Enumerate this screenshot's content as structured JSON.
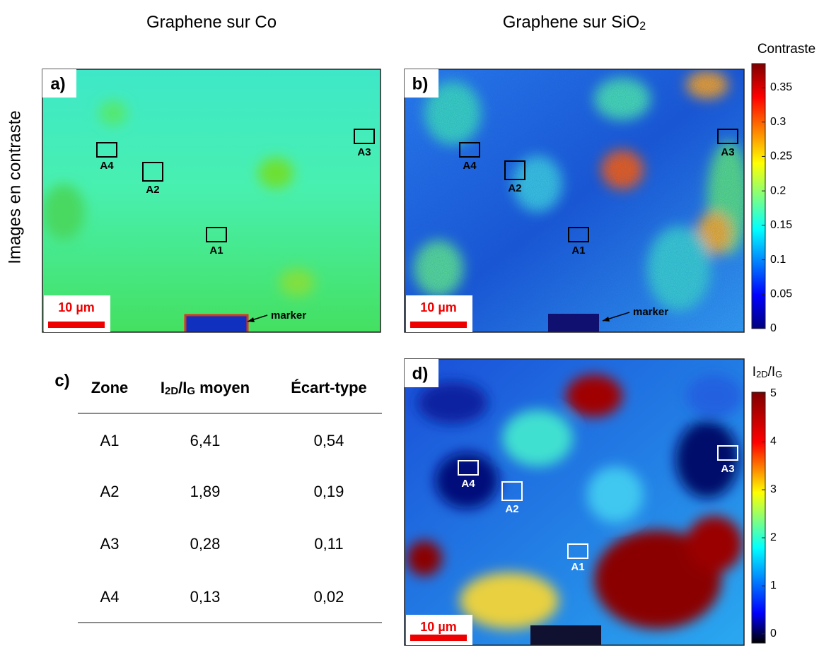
{
  "columns": [
    {
      "title": [
        "Graphene sur Co"
      ]
    },
    {
      "title": [
        "Graphene sur SiO",
        "2"
      ]
    }
  ],
  "row_label": "Images en contraste",
  "panels": {
    "a": {
      "label": "a)",
      "zones": [
        "A4",
        "A2",
        "A1",
        "A3"
      ],
      "scale_bar": "10 µm",
      "marker": "marker"
    },
    "b": {
      "label": "b)",
      "zones": [
        "A4",
        "A2",
        "A1",
        "A3"
      ],
      "scale_bar": "10 µm",
      "marker": "marker"
    },
    "d": {
      "label": "d)",
      "zones": [
        "A4",
        "A2",
        "A1",
        "A3"
      ],
      "scale_bar": "10 µm"
    }
  },
  "colorbars": [
    {
      "title": [
        "Contraste"
      ],
      "ticks": [
        0,
        0.05,
        0.1,
        0.15,
        0.2,
        0.25,
        0.3,
        0.35
      ]
    },
    {
      "title": [
        "I",
        "2D",
        "/I",
        "G"
      ],
      "ticks": [
        0,
        1,
        2,
        3,
        4,
        5
      ]
    }
  ],
  "table": {
    "label": "c)",
    "header": [
      [
        "Zone"
      ],
      [
        "I",
        "2D",
        "/I",
        "G",
        " moyen"
      ],
      [
        "Écart-type"
      ]
    ],
    "rows": [
      [
        "A1",
        "6,41",
        "0,54"
      ],
      [
        "A2",
        "1,89",
        "0,19"
      ],
      [
        "A3",
        "0,28",
        "0,11"
      ],
      [
        "A4",
        "0,13",
        "0,02"
      ]
    ]
  }
}
